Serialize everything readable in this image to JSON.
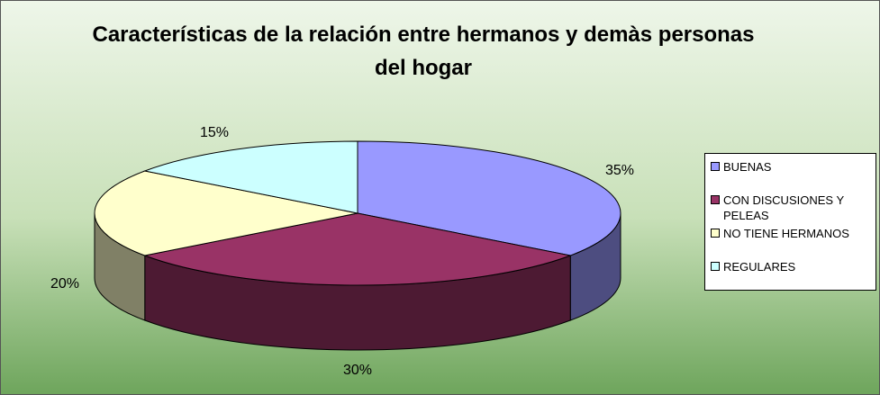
{
  "chart_data": {
    "type": "pie3d",
    "title": "Características de la relación entre hermanos y demàs personas del hogar",
    "categories": [
      "BUENAS",
      "CON DISCUSIONES Y PELEAS",
      "NO TIENE HERMANOS",
      "REGULARES"
    ],
    "values": [
      35,
      30,
      20,
      15
    ],
    "value_labels": [
      "35%",
      "30%",
      "20%",
      "15%"
    ],
    "colors": [
      "#9999ff",
      "#993366",
      "#ffffcc",
      "#ccffff"
    ],
    "legend": "right"
  }
}
